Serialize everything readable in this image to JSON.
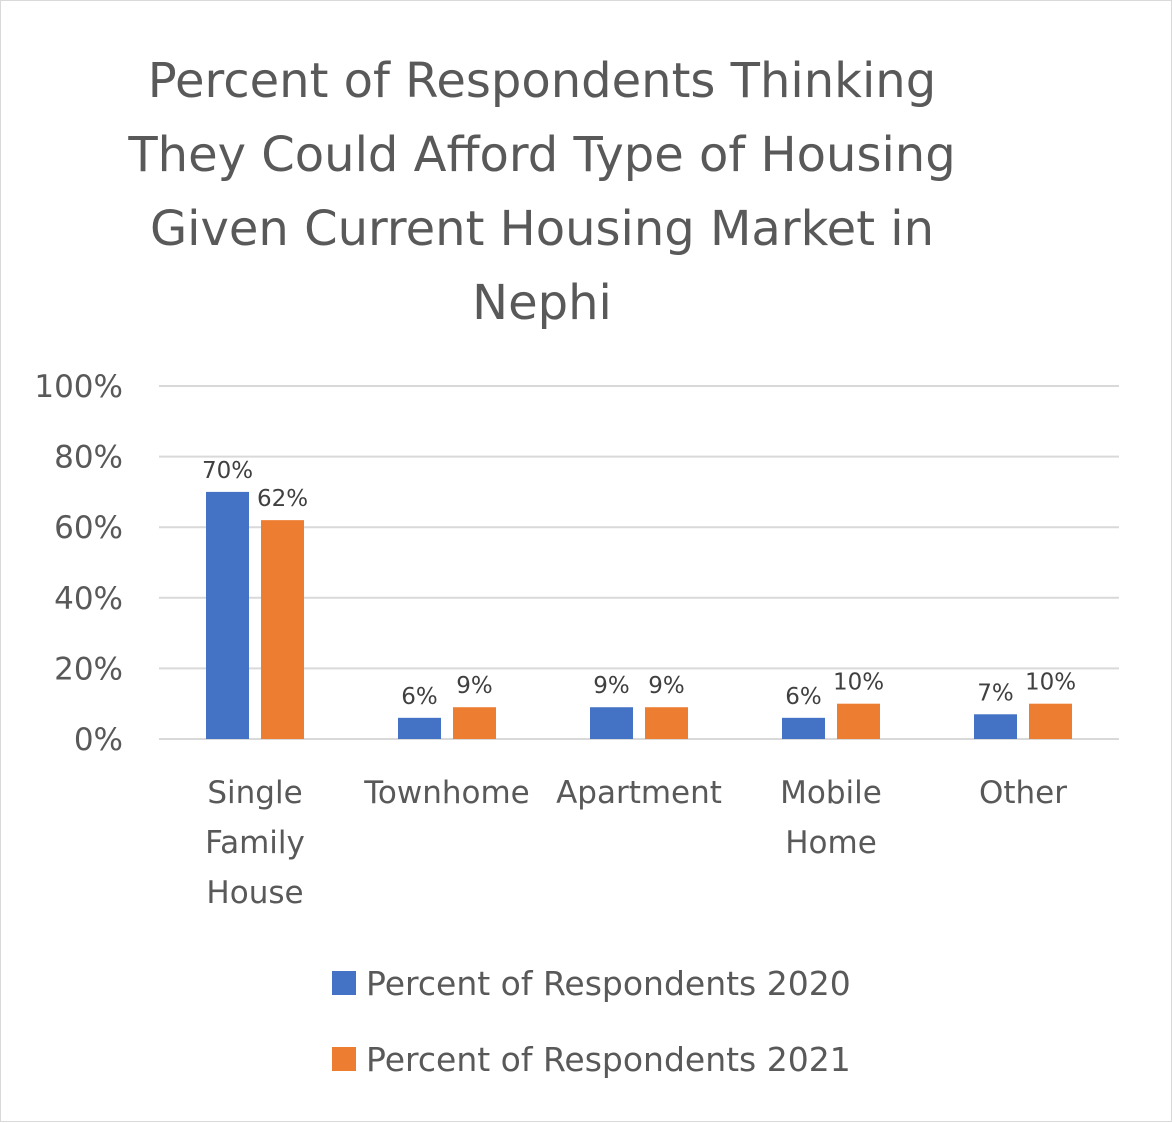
{
  "chart_data": {
    "type": "bar",
    "title_lines": [
      "Percent of Respondents Thinking",
      "They Could Afford Type of Housing",
      "Given Current Housing Market in",
      "Nephi"
    ],
    "categories": [
      [
        "Single",
        "Family",
        "House"
      ],
      [
        "Townhome"
      ],
      [
        "Apartment"
      ],
      [
        "Mobile",
        "Home"
      ],
      [
        "Other"
      ]
    ],
    "series": [
      {
        "name": "Percent of Respondents 2020",
        "values": [
          0.7,
          0.06,
          0.09,
          0.06,
          0.07
        ],
        "labels": [
          "70%",
          "6%",
          "9%",
          "6%",
          "7%"
        ],
        "color": "#4472C4"
      },
      {
        "name": "Percent of Respondents 2021",
        "values": [
          0.62,
          0.09,
          0.09,
          0.1,
          0.1
        ],
        "labels": [
          "62%",
          "9%",
          "9%",
          "10%",
          "10%"
        ],
        "color": "#ED7D31"
      }
    ],
    "y_ticks": [
      "0%",
      "20%",
      "40%",
      "60%",
      "80%",
      "100%"
    ],
    "ylim": [
      0,
      1
    ],
    "grid": true,
    "legend_position": "bottom",
    "gridline_color": "#d9d9d9"
  }
}
